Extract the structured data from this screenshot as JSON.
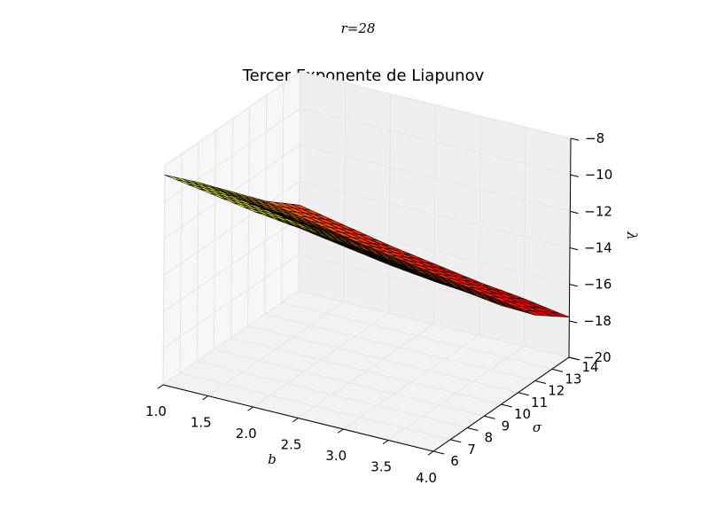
{
  "figure": {
    "suptitle": "r=28"
  },
  "chart_data": {
    "type": "surface3d",
    "title": "Tercer Exponente de Liapunov",
    "xlabel": "b",
    "ylabel": "σ",
    "zlabel": "λ",
    "xlim": [
      1.0,
      4.0
    ],
    "ylim": [
      6,
      14
    ],
    "zlim": [
      -20,
      -8
    ],
    "x_ticks": [
      "1.0",
      "1.5",
      "2.0",
      "2.5",
      "3.0",
      "3.5",
      "4.0"
    ],
    "y_ticks": [
      "6",
      "7",
      "8",
      "9",
      "10",
      "11",
      "12",
      "13",
      "14"
    ],
    "z_ticks": [
      "−20",
      "−18",
      "−16",
      "−14",
      "−12",
      "−10",
      "−8"
    ],
    "grid": true,
    "colormap": "hot",
    "colors": {
      "edge": "#000000",
      "pane": "#f2f2f2",
      "grid": "#e6e6e6"
    },
    "surface_b": [
      1.0,
      1.5,
      2.0,
      2.5,
      3.0,
      3.5,
      4.0
    ],
    "surface_sigma": [
      6,
      8,
      10,
      12,
      14
    ],
    "surface_lambda": [
      [
        -8.5,
        -10.2,
        -12.0,
        -13.8,
        -15.3
      ],
      [
        -8.9,
        -10.6,
        -12.5,
        -14.3,
        -15.8
      ],
      [
        -9.3,
        -11.0,
        -12.9,
        -14.8,
        -16.3
      ],
      [
        -9.6,
        -11.5,
        -13.4,
        -15.2,
        -16.7
      ],
      [
        -10.0,
        -11.9,
        -13.8,
        -15.6,
        -17.1
      ],
      [
        -10.4,
        -12.3,
        -14.2,
        -16.0,
        -17.4
      ],
      [
        -10.7,
        -12.6,
        -14.6,
        -16.4,
        -17.8
      ]
    ]
  }
}
